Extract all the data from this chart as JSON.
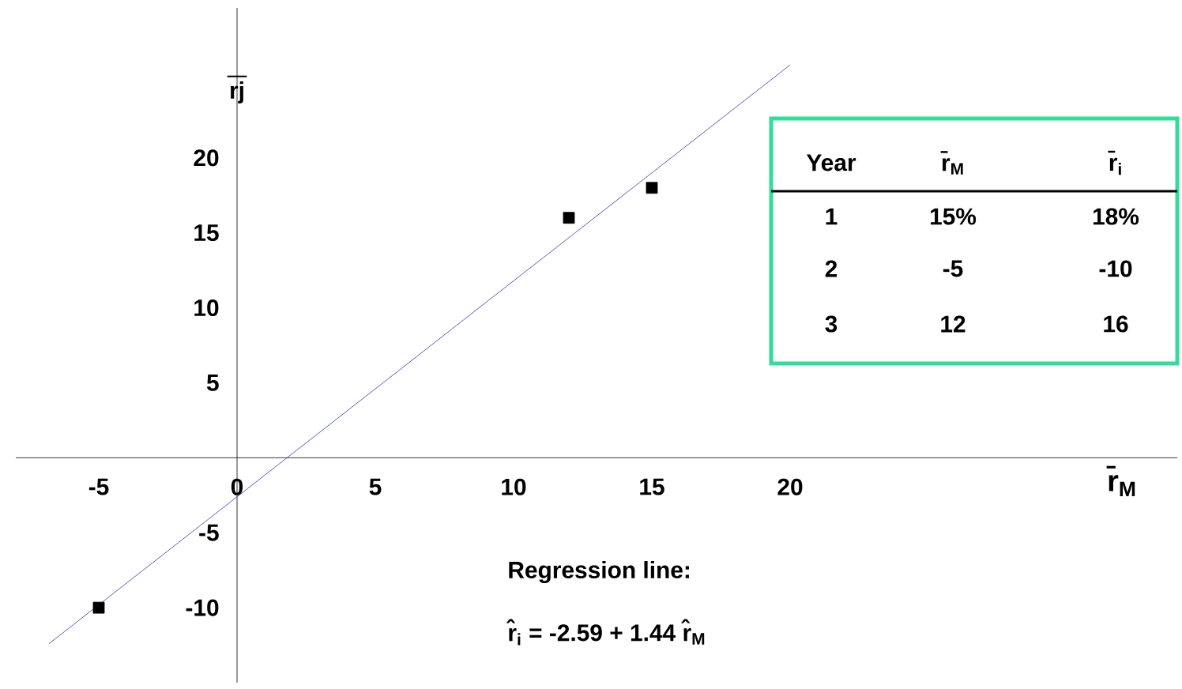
{
  "chart_data": {
    "type": "scatter",
    "xlabel": "r̄$_{M}$",
    "ylabel": "rj",
    "xlim": [
      -8,
      34
    ],
    "ylim": [
      -15,
      30
    ],
    "xticks": [
      -5,
      0,
      5,
      10,
      15,
      20
    ],
    "yticks": [
      -10,
      -5,
      5,
      10,
      15,
      20
    ],
    "grid": false,
    "series": [
      {
        "color": "#000000",
        "marker": "square",
        "x": [
          15,
          -5,
          12
        ],
        "values": [
          18,
          -10,
          16
        ]
      },
      {
        "type": "line",
        "color": "#3333aa",
        "marker": "none",
        "x": [
          -6.8,
          20
        ],
        "values": [
          -12.4,
          26.2
        ]
      }
    ],
    "annotations": [
      "Year",
      "r̄$_{M}$",
      "r̄$_{i}$",
      "1",
      "15%",
      "18%",
      "2",
      "-5",
      "-10",
      "3",
      "12",
      "16",
      "Regression line:",
      "r̂$_{i}$ = -2.59 + 1.44 r̂$_{M}$"
    ]
  }
}
